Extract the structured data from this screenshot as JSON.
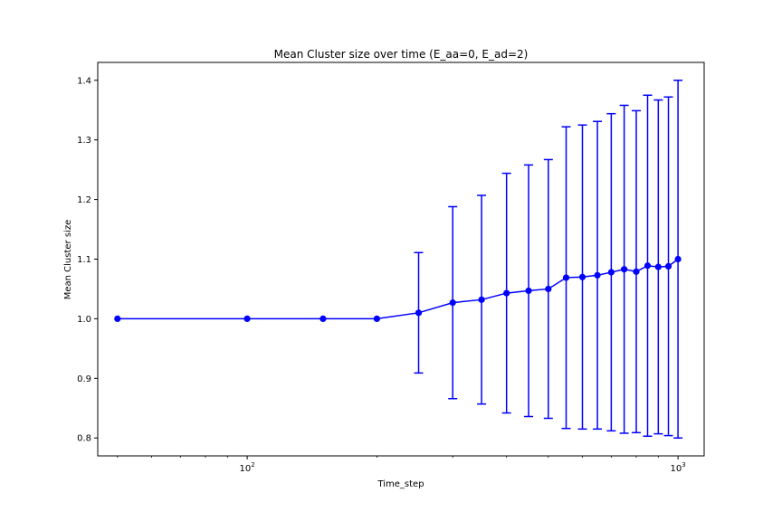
{
  "chart_data": {
    "type": "line",
    "title": "Mean Cluster size over time (E_aa=0, E_ad=2)",
    "xlabel": "Time_step",
    "ylabel": "Mean Cluster size",
    "xscale": "log",
    "xlim": [
      45,
      1150
    ],
    "ylim": [
      0.77,
      1.43
    ],
    "x_ticks": [
      {
        "value": 100,
        "base": "10",
        "exp": "2"
      },
      {
        "value": 1000,
        "base": "10",
        "exp": "3"
      }
    ],
    "y_ticks": [
      {
        "value": 0.8,
        "label": "0.8"
      },
      {
        "value": 0.9,
        "label": "0.9"
      },
      {
        "value": 1.0,
        "label": "1.0"
      },
      {
        "value": 1.1,
        "label": "1.1"
      },
      {
        "value": 1.2,
        "label": "1.2"
      },
      {
        "value": 1.3,
        "label": "1.3"
      },
      {
        "value": 1.4,
        "label": "1.4"
      }
    ],
    "grid": false,
    "color": "#0000ff",
    "series": [
      {
        "x": [
          50,
          100,
          150,
          200,
          250,
          300,
          350,
          400,
          450,
          500,
          550,
          600,
          650,
          700,
          750,
          800,
          850,
          900,
          950,
          1000
        ],
        "y": [
          1.0,
          1.0,
          1.0,
          1.0,
          1.01,
          1.027,
          1.032,
          1.043,
          1.047,
          1.05,
          1.069,
          1.07,
          1.073,
          1.078,
          1.083,
          1.079,
          1.089,
          1.087,
          1.088,
          1.1
        ],
        "yerr": [
          0,
          0,
          0,
          0,
          0.101,
          0.161,
          0.175,
          0.201,
          0.211,
          0.217,
          0.253,
          0.255,
          0.258,
          0.266,
          0.275,
          0.27,
          0.286,
          0.28,
          0.284,
          0.3
        ]
      }
    ]
  }
}
